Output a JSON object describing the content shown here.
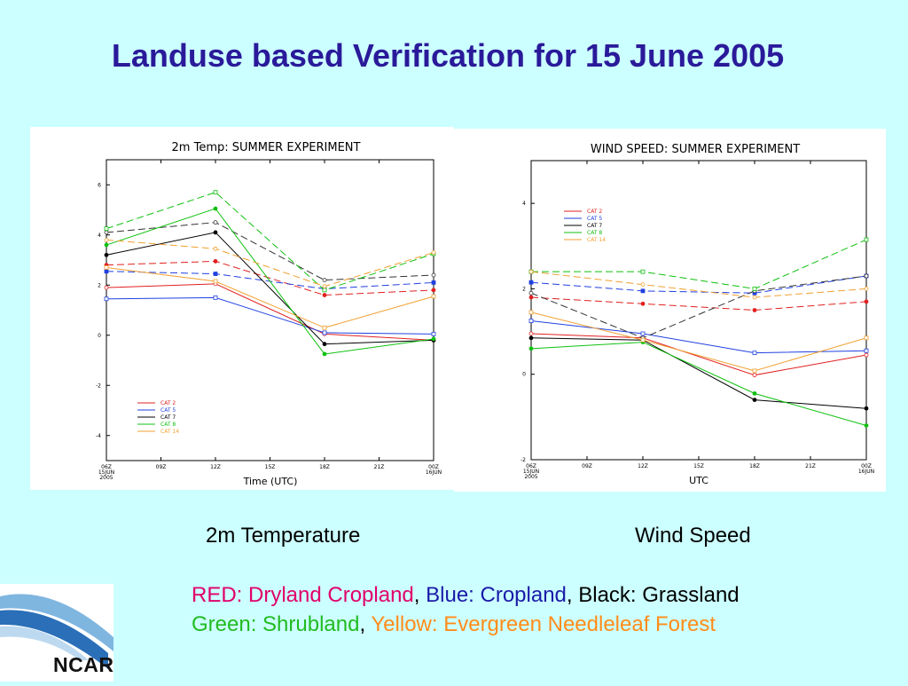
{
  "slide": {
    "title": "Landuse based Verification for 15 June 2005",
    "caption_left": "2m Temperature",
    "caption_right": "Wind Speed",
    "legend_line_1": [
      {
        "text": "RED: Dryland Cropland",
        "color": "#e0006a"
      },
      {
        "text": ", ",
        "color": "#000000"
      },
      {
        "text": "Blue: Cropland",
        "color": "#1a1aa8"
      },
      {
        "text": ", ",
        "color": "#000000"
      },
      {
        "text": "Black: Grassland",
        "color": "#000000"
      }
    ],
    "legend_line_2": [
      {
        "text": "Green: Shrubland",
        "color": "#22bb22"
      },
      {
        "text": ", ",
        "color": "#000000"
      },
      {
        "text": "Yellow: Evergreen Needleleaf Forest",
        "color": "#ff8c1a"
      }
    ],
    "logo_text": "NCAR"
  },
  "chart_data": [
    {
      "type": "line",
      "title": "2m Temp: SUMMER EXPERIMENT",
      "xlabel": "Time (UTC)",
      "ylabel": "",
      "x": [
        "06Z\n15JUN\n2005",
        "09Z",
        "12Z",
        "15Z",
        "18Z",
        "21Z",
        "00Z\n16JUN"
      ],
      "ylim": [
        -5,
        7
      ],
      "yticks": [
        -4,
        -2,
        0,
        2,
        4,
        6
      ],
      "ytick_labels": [
        "-4",
        "-2",
        "0",
        "2",
        "4",
        "6"
      ],
      "legend_position": "bottom-left",
      "grid": false,
      "series": [
        {
          "name": "CAT 2",
          "color": "#e02020",
          "style": "solid",
          "marker": "open-circle",
          "values": [
            1.9,
            null,
            2.05,
            null,
            0.05,
            null,
            -0.2
          ]
        },
        {
          "name": "CAT 2",
          "color": "#e02020",
          "style": "dashed",
          "marker": "filled-circle",
          "values": [
            2.8,
            null,
            2.95,
            null,
            1.6,
            null,
            1.8
          ]
        },
        {
          "name": "CAT 5",
          "color": "#2040e0",
          "style": "solid",
          "marker": "open-square",
          "values": [
            1.45,
            null,
            1.5,
            null,
            0.1,
            null,
            0.05
          ]
        },
        {
          "name": "CAT 5",
          "color": "#2040e0",
          "style": "dashed",
          "marker": "filled-square",
          "values": [
            2.55,
            null,
            2.45,
            null,
            1.85,
            null,
            2.1
          ]
        },
        {
          "name": "CAT 7",
          "color": "#000000",
          "style": "solid",
          "marker": "filled-circle",
          "values": [
            3.2,
            null,
            4.1,
            null,
            -0.35,
            null,
            -0.2
          ]
        },
        {
          "name": "CAT 7",
          "color": "#333333",
          "style": "dashed",
          "marker": "open-circle",
          "values": [
            4.1,
            null,
            4.5,
            null,
            2.2,
            null,
            2.4
          ]
        },
        {
          "name": "CAT 8",
          "color": "#10c010",
          "style": "solid",
          "marker": "filled-circle",
          "values": [
            3.6,
            null,
            5.05,
            null,
            -0.75,
            null,
            -0.15
          ]
        },
        {
          "name": "CAT 8",
          "color": "#10c010",
          "style": "dashed",
          "marker": "open-square",
          "values": [
            4.25,
            null,
            5.7,
            null,
            1.8,
            null,
            3.25
          ]
        },
        {
          "name": "CAT 14",
          "color": "#f0a030",
          "style": "solid",
          "marker": "open-square",
          "values": [
            2.7,
            null,
            2.15,
            null,
            0.3,
            null,
            1.55
          ]
        },
        {
          "name": "CAT 14",
          "color": "#f0a030",
          "style": "dashed",
          "marker": "open-circle",
          "values": [
            3.8,
            null,
            3.45,
            null,
            1.95,
            null,
            3.3
          ]
        }
      ]
    },
    {
      "type": "line",
      "title": "WIND SPEED: SUMMER EXPERIMENT",
      "xlabel": "UTC",
      "ylabel": "",
      "x": [
        "06Z\n15JUN\n2005",
        "09Z",
        "12Z",
        "15Z",
        "18Z",
        "21Z",
        "00Z\n16JUN"
      ],
      "ylim": [
        -2,
        5
      ],
      "yticks": [
        -2,
        0,
        2,
        4
      ],
      "ytick_labels": [
        "-2",
        "0",
        "2",
        "4"
      ],
      "legend_position": "top-left",
      "grid": false,
      "series": [
        {
          "name": "CAT 2",
          "color": "#e02020",
          "style": "solid",
          "marker": "open-circle",
          "values": [
            0.95,
            null,
            0.85,
            null,
            -0.02,
            null,
            0.45
          ]
        },
        {
          "name": "CAT 2",
          "color": "#e02020",
          "style": "dashed",
          "marker": "filled-circle",
          "values": [
            1.8,
            null,
            1.65,
            null,
            1.5,
            null,
            1.7
          ]
        },
        {
          "name": "CAT 5",
          "color": "#2040e0",
          "style": "solid",
          "marker": "open-square",
          "values": [
            1.25,
            null,
            0.95,
            null,
            0.5,
            null,
            0.55
          ]
        },
        {
          "name": "CAT 5",
          "color": "#2040e0",
          "style": "dashed",
          "marker": "filled-square",
          "values": [
            2.15,
            null,
            1.95,
            null,
            1.9,
            null,
            2.3
          ]
        },
        {
          "name": "CAT 7",
          "color": "#000000",
          "style": "solid",
          "marker": "filled-circle",
          "values": [
            0.85,
            null,
            0.8,
            null,
            -0.6,
            null,
            -0.8
          ]
        },
        {
          "name": "CAT 7",
          "color": "#333333",
          "style": "dashed",
          "marker": "open-circle",
          "values": [
            1.9,
            null,
            0.85,
            null,
            1.95,
            null,
            2.3
          ]
        },
        {
          "name": "CAT 8",
          "color": "#10c010",
          "style": "solid",
          "marker": "filled-circle",
          "values": [
            0.6,
            null,
            0.75,
            null,
            -0.45,
            null,
            -1.2
          ]
        },
        {
          "name": "CAT 8",
          "color": "#10c010",
          "style": "dashed",
          "marker": "open-square",
          "values": [
            2.4,
            null,
            2.4,
            null,
            2.0,
            null,
            3.15
          ]
        },
        {
          "name": "CAT 14",
          "color": "#f0a030",
          "style": "solid",
          "marker": "open-square",
          "values": [
            1.45,
            null,
            0.8,
            null,
            0.08,
            null,
            0.85
          ]
        },
        {
          "name": "CAT 14",
          "color": "#f0a030",
          "style": "dashed",
          "marker": "open-circle",
          "values": [
            2.4,
            null,
            2.1,
            null,
            1.8,
            null,
            2.0
          ]
        }
      ]
    }
  ]
}
